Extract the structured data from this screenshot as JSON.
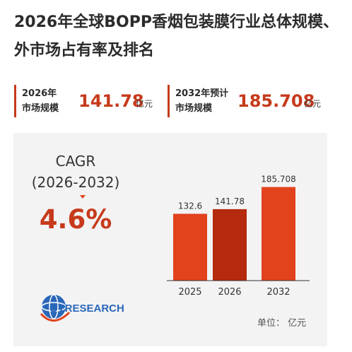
{
  "title": {
    "line1": "2026年全球BOPP香烟包装膜行业总体规模、",
    "line2": "外市场占有率及排名"
  },
  "stats": [
    {
      "label_line1": "2026年",
      "label_line2": "市场规模",
      "value": "141.78",
      "unit": "亿元"
    },
    {
      "label_line1": "2032年预计",
      "label_line2": "市场规模",
      "value": "185.708",
      "unit": "亿元"
    }
  ],
  "cagr": {
    "label_line1": "CAGR",
    "label_line2": "(2026-2032)",
    "value": "4.6%"
  },
  "brand": {
    "logo_text": "QYRESEARCH"
  },
  "unit_note": "单位： 亿元",
  "colors": {
    "accent": "#c63a1b",
    "bar_light": "#e2421c",
    "bar_dark": "#b5290c",
    "panel_bg": "#f3f3f3",
    "brand_blue": "#2a67b8"
  },
  "chart_data": {
    "type": "bar",
    "categories": [
      "2025",
      "2026",
      "2032"
    ],
    "values": [
      132.6,
      141.78,
      185.708
    ],
    "value_labels": [
      "132.6",
      "141.78",
      "185.708"
    ],
    "bar_colors": [
      "#e2421c",
      "#b5290c",
      "#e2421c"
    ],
    "title": "",
    "xlabel": "",
    "ylabel": "",
    "grid": false
  }
}
